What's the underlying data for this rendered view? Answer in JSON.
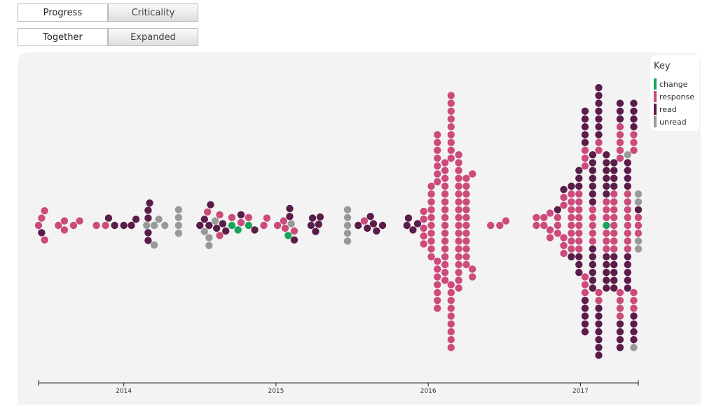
{
  "buttons": [
    [
      "Progress",
      "Criticality"
    ],
    [
      "Together",
      "Expanded"
    ]
  ],
  "chart_data": {
    "type": "beeswarm",
    "legend_title": "Key",
    "xlim": [
      2013.44,
      2017.38
    ],
    "xticks": [
      2014,
      2015,
      2016,
      2017
    ],
    "series": [
      {
        "name": "change",
        "color": "#1ba35b",
        "values": [
          2014.71,
          2014.75,
          2014.82,
          2015.08,
          2017.17
        ]
      },
      {
        "name": "response",
        "color": "#cc4b7b",
        "values": [
          2013.44,
          2013.46,
          2013.48,
          2013.48,
          2013.57,
          2013.61,
          2013.61,
          2013.67,
          2013.71,
          2013.82,
          2013.88,
          2014.55,
          2014.63,
          2014.63,
          2014.71,
          2014.77,
          2014.82,
          2014.92,
          2014.94,
          2015.01,
          2015.05,
          2015.06,
          2015.12,
          2015.58,
          2015.97,
          2015.97,
          2015.97,
          2015.97,
          2015.97,
          2016.02,
          2016.02,
          2016.02,
          2016.02,
          2016.02,
          2016.02,
          2016.02,
          2016.02,
          2016.02,
          2016.02,
          2016.06,
          2016.06,
          2016.06,
          2016.06,
          2016.06,
          2016.06,
          2016.06,
          2016.06,
          2016.06,
          2016.06,
          2016.06,
          2016.06,
          2016.06,
          2016.06,
          2016.11,
          2016.11,
          2016.11,
          2016.11,
          2016.11,
          2016.11,
          2016.11,
          2016.11,
          2016.11,
          2016.11,
          2016.11,
          2016.11,
          2016.11,
          2016.11,
          2016.11,
          2016.11,
          2016.15,
          2016.15,
          2016.15,
          2016.15,
          2016.15,
          2016.15,
          2016.15,
          2016.15,
          2016.15,
          2016.15,
          2016.15,
          2016.15,
          2016.15,
          2016.15,
          2016.15,
          2016.15,
          2016.15,
          2016.15,
          2016.2,
          2016.2,
          2016.2,
          2016.2,
          2016.2,
          2016.2,
          2016.2,
          2016.2,
          2016.2,
          2016.2,
          2016.2,
          2016.2,
          2016.2,
          2016.2,
          2016.2,
          2016.2,
          2016.2,
          2016.2,
          2016.25,
          2016.25,
          2016.25,
          2016.25,
          2016.25,
          2016.25,
          2016.25,
          2016.25,
          2016.25,
          2016.25,
          2016.25,
          2016.25,
          2016.29,
          2016.29,
          2016.29,
          2016.41,
          2016.47,
          2016.51,
          2016.71,
          2016.71,
          2016.76,
          2016.76,
          2016.8,
          2016.8,
          2016.8,
          2016.85,
          2016.85,
          2016.85,
          2016.89,
          2016.89,
          2016.89,
          2016.89,
          2016.89,
          2016.94,
          2016.94,
          2016.94,
          2016.94,
          2016.94,
          2016.94,
          2016.94,
          2016.94,
          2016.99,
          2016.99,
          2016.99,
          2016.99,
          2016.99,
          2016.99,
          2016.99,
          2016.99,
          2017.03,
          2017.03,
          2017.03,
          2017.03,
          2017.03,
          2017.03,
          2017.08,
          2017.08,
          2017.08,
          2017.08,
          2017.08,
          2017.12,
          2017.12,
          2017.12,
          2017.12,
          2017.17,
          2017.17,
          2017.17,
          2017.17,
          2017.17,
          2017.17,
          2017.22,
          2017.22,
          2017.22,
          2017.22,
          2017.22,
          2017.22,
          2017.22,
          2017.22,
          2017.26,
          2017.26,
          2017.26,
          2017.26,
          2017.26,
          2017.26,
          2017.26,
          2017.26,
          2017.26,
          2017.31,
          2017.31,
          2017.31,
          2017.31,
          2017.31,
          2017.31,
          2017.31,
          2017.31,
          2017.35,
          2017.35,
          2017.35,
          2017.35,
          2017.35,
          2017.35,
          2017.38,
          2017.38,
          2017.38
        ]
      },
      {
        "name": "read",
        "color": "#5a1c49",
        "values": [
          2013.46,
          2013.9,
          2013.94,
          2014.0,
          2014.05,
          2014.08,
          2014.16,
          2014.16,
          2014.16,
          2014.16,
          2014.17,
          2014.5,
          2014.53,
          2014.56,
          2014.57,
          2014.61,
          2014.65,
          2014.67,
          2014.77,
          2014.86,
          2015.09,
          2015.12,
          2015.09,
          2015.23,
          2015.24,
          2015.28,
          2015.29,
          2015.26,
          2015.54,
          2015.6,
          2015.62,
          2015.66,
          2015.7,
          2015.64,
          2015.86,
          2015.87,
          2015.9,
          2015.93,
          2016.85,
          2016.89,
          2016.94,
          2016.94,
          2016.99,
          2016.99,
          2016.99,
          2016.99,
          2016.99,
          2016.99,
          2017.03,
          2017.03,
          2017.03,
          2017.03,
          2017.03,
          2017.03,
          2017.03,
          2017.03,
          2017.03,
          2017.03,
          2017.08,
          2017.08,
          2017.08,
          2017.08,
          2017.08,
          2017.08,
          2017.08,
          2017.08,
          2017.08,
          2017.08,
          2017.08,
          2017.08,
          2017.08,
          2017.12,
          2017.12,
          2017.12,
          2017.12,
          2017.12,
          2017.12,
          2017.12,
          2017.12,
          2017.12,
          2017.12,
          2017.12,
          2017.12,
          2017.12,
          2017.12,
          2017.17,
          2017.17,
          2017.17,
          2017.17,
          2017.17,
          2017.17,
          2017.17,
          2017.17,
          2017.17,
          2017.17,
          2017.17,
          2017.22,
          2017.22,
          2017.22,
          2017.22,
          2017.22,
          2017.22,
          2017.22,
          2017.22,
          2017.22,
          2017.26,
          2017.26,
          2017.26,
          2017.26,
          2017.26,
          2017.26,
          2017.26,
          2017.31,
          2017.31,
          2017.31,
          2017.31,
          2017.31,
          2017.31,
          2017.31,
          2017.31,
          2017.31,
          2017.35,
          2017.35,
          2017.35,
          2017.35,
          2017.35,
          2017.35,
          2017.35,
          2017.35,
          2017.38
        ]
      },
      {
        "name": "unread",
        "color": "#999999",
        "values": [
          2014.15,
          2014.2,
          2014.2,
          2014.23,
          2014.27,
          2014.36,
          2014.36,
          2014.36,
          2014.36,
          2014.53,
          2014.56,
          2014.6,
          2014.56,
          2015.1,
          2015.47,
          2015.47,
          2015.47,
          2015.47,
          2015.47,
          2017.31,
          2017.35,
          2017.38,
          2017.38,
          2017.38,
          2017.38
        ]
      }
    ]
  }
}
